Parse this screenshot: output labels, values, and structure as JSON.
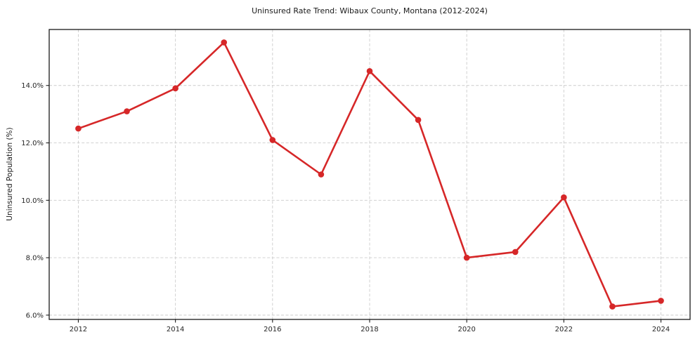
{
  "chart_data": {
    "type": "line",
    "title": "Uninsured Rate Trend: Wibaux County, Montana (2012-2024)",
    "xlabel": "",
    "ylabel": "Uninsured Population (%)",
    "x": [
      2012,
      2013,
      2014,
      2015,
      2016,
      2017,
      2018,
      2019,
      2020,
      2021,
      2022,
      2023,
      2024
    ],
    "y": [
      12.5,
      13.1,
      13.9,
      15.5,
      12.1,
      10.9,
      14.5,
      12.8,
      8.0,
      8.2,
      10.1,
      6.3,
      6.5
    ],
    "xticks": {
      "values": [
        2012,
        2014,
        2016,
        2018,
        2020,
        2022,
        2024
      ],
      "labels": [
        "2012",
        "2014",
        "2016",
        "2018",
        "2020",
        "2022",
        "2024"
      ]
    },
    "yticks": {
      "values": [
        6,
        8,
        10,
        12,
        14
      ],
      "labels": [
        "6.0%",
        "8.0%",
        "10.0%",
        "12.0%",
        "14.0%"
      ]
    },
    "xlim": [
      2011.4,
      2024.6
    ],
    "ylim": [
      5.85,
      15.95
    ],
    "grid": true,
    "grid_style": "dashed",
    "legend": "none",
    "line_color": "#d62728",
    "grid_color": "#cccccc",
    "spine_color": "#1a1a1a",
    "tick_label_color": "#262626",
    "marker": "circle",
    "background": "#ffffff"
  }
}
